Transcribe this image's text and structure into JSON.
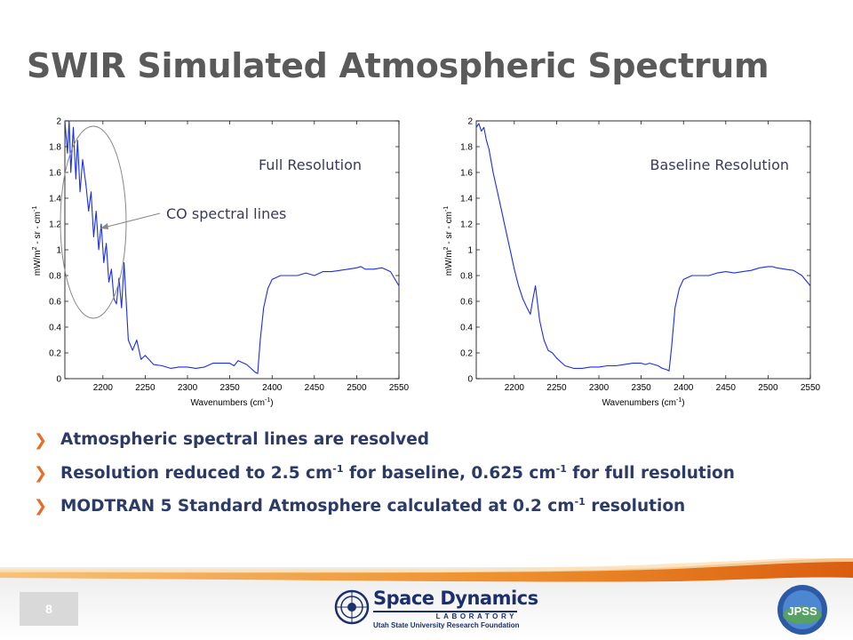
{
  "slide": {
    "title": "SWIR Simulated Atmospheric Spectrum",
    "page_number": "8",
    "bullets": [
      {
        "pre": "Atmospheric spectral lines are resolved",
        "parts": []
      },
      {
        "pre": "Resolution reduced to 2.5 cm",
        "sup1": "-1",
        "mid": " for baseline, 0.625 cm",
        "sup2": "-1",
        "post": " for full resolution"
      },
      {
        "pre": "MODTRAN 5 Standard Atmosphere calculated at 0.2 cm",
        "sup1": "-1",
        "post": " resolution"
      }
    ],
    "annotation": "CO spectral lines"
  },
  "logos": {
    "sdl_title": "Space Dynamics",
    "sdl_sub": "LABORATORY",
    "sdl_foot": "Utah State University Research Foundation",
    "jpss": "JPSS"
  },
  "colors": {
    "line": "#1a2ee8",
    "title": "#5a5a5a",
    "bullet_text": "#2b3a67",
    "bullet_marker": "#e0702a",
    "footer_orange": "#e8801f"
  },
  "chart_data": [
    {
      "type": "line",
      "title": "Full Resolution",
      "xlabel": "Wavenumbers (cm-1)",
      "ylabel": "mW/m2 - sr - cm-1",
      "xlim": [
        2155,
        2550
      ],
      "ylim": [
        0,
        2
      ],
      "xticks": [
        2200,
        2250,
        2300,
        2350,
        2400,
        2450,
        2500,
        2550
      ],
      "yticks": [
        0,
        0.2,
        0.4,
        0.6,
        0.8,
        1,
        1.2,
        1.4,
        1.6,
        1.8,
        2
      ],
      "x": [
        2155,
        2158,
        2160,
        2162,
        2165,
        2168,
        2170,
        2173,
        2176,
        2180,
        2183,
        2186,
        2189,
        2192,
        2195,
        2198,
        2201,
        2204,
        2207,
        2210,
        2213,
        2216,
        2219,
        2222,
        2225,
        2230,
        2235,
        2240,
        2245,
        2250,
        2260,
        2270,
        2280,
        2290,
        2300,
        2310,
        2320,
        2330,
        2340,
        2350,
        2355,
        2360,
        2370,
        2375,
        2380,
        2383,
        2386,
        2390,
        2395,
        2400,
        2410,
        2420,
        2430,
        2440,
        2450,
        2460,
        2470,
        2480,
        2490,
        2500,
        2505,
        2510,
        2520,
        2530,
        2540,
        2550
      ],
      "y": [
        2.0,
        1.75,
        2.0,
        1.6,
        1.95,
        1.55,
        1.85,
        1.45,
        1.7,
        1.5,
        1.3,
        1.45,
        1.1,
        1.3,
        1.0,
        1.2,
        0.9,
        1.05,
        0.75,
        0.85,
        0.62,
        0.58,
        0.78,
        0.55,
        0.9,
        0.3,
        0.22,
        0.3,
        0.15,
        0.18,
        0.11,
        0.1,
        0.08,
        0.09,
        0.09,
        0.08,
        0.09,
        0.12,
        0.12,
        0.12,
        0.1,
        0.14,
        0.11,
        0.08,
        0.05,
        0.04,
        0.3,
        0.55,
        0.7,
        0.77,
        0.8,
        0.8,
        0.8,
        0.82,
        0.8,
        0.83,
        0.83,
        0.84,
        0.85,
        0.86,
        0.87,
        0.85,
        0.85,
        0.86,
        0.83,
        0.72
      ]
    },
    {
      "type": "line",
      "title": "Baseline Resolution",
      "xlabel": "Wavenumbers (cm-1)",
      "ylabel": "mW/m2 - sr - cm-1",
      "xlim": [
        2155,
        2550
      ],
      "ylim": [
        0,
        2
      ],
      "xticks": [
        2200,
        2250,
        2300,
        2350,
        2400,
        2450,
        2500,
        2550
      ],
      "yticks": [
        0,
        0.2,
        0.4,
        0.6,
        0.8,
        1,
        1.2,
        1.4,
        1.6,
        1.8,
        2
      ],
      "x": [
        2155,
        2158,
        2161,
        2164,
        2167,
        2170,
        2175,
        2180,
        2185,
        2190,
        2195,
        2200,
        2205,
        2210,
        2215,
        2219,
        2222,
        2225,
        2230,
        2235,
        2240,
        2245,
        2250,
        2260,
        2270,
        2280,
        2290,
        2300,
        2310,
        2320,
        2330,
        2340,
        2350,
        2355,
        2360,
        2370,
        2375,
        2380,
        2383,
        2386,
        2390,
        2395,
        2400,
        2410,
        2420,
        2430,
        2440,
        2450,
        2460,
        2470,
        2480,
        2490,
        2500,
        2505,
        2510,
        2520,
        2530,
        2540,
        2550
      ],
      "y": [
        1.95,
        1.98,
        1.92,
        1.95,
        1.85,
        1.78,
        1.6,
        1.45,
        1.3,
        1.15,
        1.0,
        0.85,
        0.72,
        0.62,
        0.55,
        0.5,
        0.62,
        0.72,
        0.45,
        0.3,
        0.22,
        0.2,
        0.16,
        0.1,
        0.08,
        0.08,
        0.09,
        0.09,
        0.1,
        0.1,
        0.11,
        0.12,
        0.12,
        0.11,
        0.12,
        0.1,
        0.08,
        0.07,
        0.06,
        0.25,
        0.55,
        0.7,
        0.77,
        0.8,
        0.8,
        0.8,
        0.82,
        0.83,
        0.82,
        0.83,
        0.84,
        0.86,
        0.87,
        0.87,
        0.86,
        0.85,
        0.84,
        0.8,
        0.72
      ]
    }
  ]
}
